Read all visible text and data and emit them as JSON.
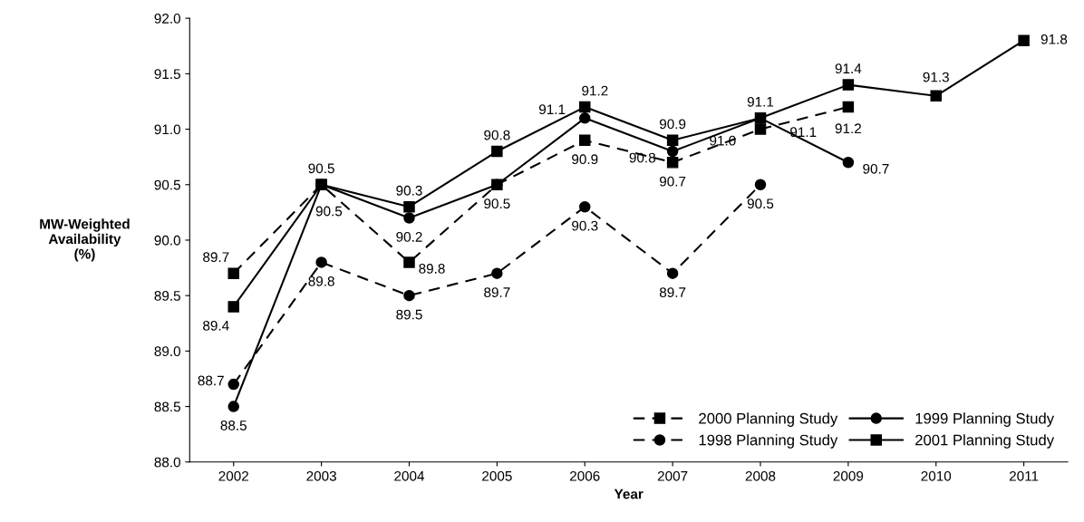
{
  "chart_data": {
    "type": "line",
    "xlabel": "Year",
    "ylabel": "MW-Weighted\nAvailability\n(%)",
    "categories": [
      "2002",
      "2003",
      "2004",
      "2005",
      "2006",
      "2007",
      "2008",
      "2009",
      "2010",
      "2011"
    ],
    "ylim": [
      88.0,
      92.0
    ],
    "yticks": [
      {
        "value": 88.0,
        "label": "88.0"
      },
      {
        "value": 88.5,
        "label": "88.5"
      },
      {
        "value": 89.0,
        "label": "89.0"
      },
      {
        "value": 89.5,
        "label": "89.5"
      },
      {
        "value": 90.0,
        "label": "90.0"
      },
      {
        "value": 90.5,
        "label": "90.5"
      },
      {
        "value": 91.0,
        "label": "91.0"
      },
      {
        "value": 91.5,
        "label": "91.5"
      },
      {
        "value": 92.0,
        "label": "92.0"
      }
    ],
    "grid": false,
    "legend": "bottom right",
    "series": [
      {
        "name": "2000 Planning Study",
        "color": "#000000",
        "marker": "square",
        "line_style": "dashed",
        "values": [
          89.7,
          90.5,
          89.8,
          90.5,
          90.9,
          90.7,
          91.0,
          91.2,
          null,
          null
        ],
        "value_labels": [
          "89.7",
          "90.5",
          "89.8",
          null,
          "90.9",
          "90.7",
          "91.0",
          "91.2",
          null,
          null
        ]
      },
      {
        "name": "1998 Planning Study",
        "color": "#000000",
        "marker": "circle",
        "line_style": "dashed",
        "values": [
          88.7,
          89.8,
          89.5,
          89.7,
          90.3,
          89.7,
          90.5,
          null,
          null,
          null
        ],
        "value_labels": [
          "88.7",
          "89.8",
          "89.5",
          "89.7",
          "90.3",
          "89.7",
          "90.5",
          null,
          null,
          null
        ]
      },
      {
        "name": "1999 Planning Study",
        "color": "#000000",
        "marker": "circle",
        "line_style": "solid",
        "values": [
          88.5,
          90.5,
          90.2,
          90.5,
          91.1,
          90.8,
          91.1,
          90.7,
          null,
          null
        ],
        "value_labels": [
          "88.5",
          null,
          "90.2",
          "90.5",
          "91.1",
          "90.8",
          "91.1",
          "90.7",
          null,
          null
        ]
      },
      {
        "name": "2001 Planning Study",
        "color": "#000000",
        "marker": "square",
        "line_style": "solid",
        "values": [
          89.4,
          90.5,
          90.3,
          90.8,
          91.2,
          90.9,
          91.1,
          91.4,
          91.3,
          91.8
        ],
        "value_labels": [
          "89.4",
          "90.5",
          "90.3",
          "90.8",
          "91.2",
          "90.9",
          "91.1",
          "91.4",
          "91.3",
          "91.8"
        ]
      }
    ]
  }
}
